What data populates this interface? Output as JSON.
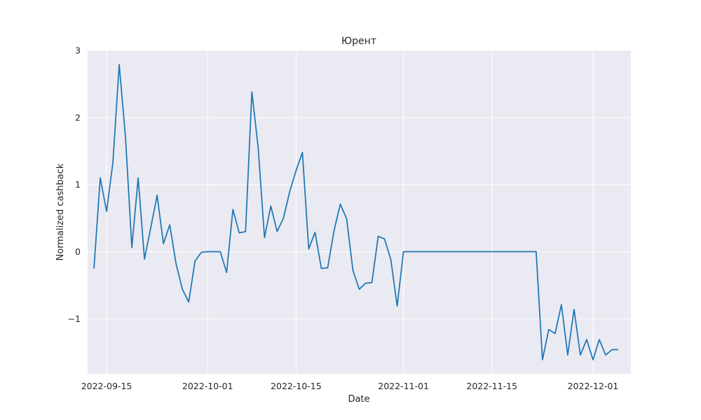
{
  "chart_data": {
    "type": "line",
    "title": "Юрент",
    "xlabel": "Date",
    "ylabel": "Normalized cashback",
    "xlim": [
      "2022-09-12",
      "2022-12-07"
    ],
    "ylim": [
      -1.82,
      3.0
    ],
    "x_ticks": [
      "2022-09-15",
      "2022-10-01",
      "2022-10-15",
      "2022-11-01",
      "2022-11-15",
      "2022-12-01"
    ],
    "y_ticks": [
      3,
      2,
      1,
      0,
      -1
    ],
    "y_tick_labels": [
      "3",
      "2",
      "1",
      "0",
      "−1"
    ],
    "grid": true,
    "colors": {
      "background": "#EAEAF2",
      "grid": "#FFFFFF",
      "line": "#1F77B4"
    },
    "series": [
      {
        "x": [
          "2022-09-13",
          "2022-09-14",
          "2022-09-15",
          "2022-09-16",
          "2022-09-17",
          "2022-09-18",
          "2022-09-19",
          "2022-09-20",
          "2022-09-21",
          "2022-09-22",
          "2022-09-23",
          "2022-09-24",
          "2022-09-25",
          "2022-09-26",
          "2022-09-27",
          "2022-09-28",
          "2022-09-29",
          "2022-09-30",
          "2022-10-01",
          "2022-10-02",
          "2022-10-03",
          "2022-10-04",
          "2022-10-05",
          "2022-10-06",
          "2022-10-07",
          "2022-10-08",
          "2022-10-09",
          "2022-10-10",
          "2022-10-11",
          "2022-10-12",
          "2022-10-13",
          "2022-10-14",
          "2022-10-15",
          "2022-10-16",
          "2022-10-17",
          "2022-10-18",
          "2022-10-19",
          "2022-10-20",
          "2022-10-21",
          "2022-10-22",
          "2022-10-23",
          "2022-10-24",
          "2022-10-25",
          "2022-10-26",
          "2022-10-27",
          "2022-10-28",
          "2022-10-29",
          "2022-10-30",
          "2022-10-31",
          "2022-11-01",
          "2022-11-22",
          "2022-11-23",
          "2022-11-24",
          "2022-11-25",
          "2022-11-26",
          "2022-11-27",
          "2022-11-28",
          "2022-11-29",
          "2022-11-30",
          "2022-12-01",
          "2022-12-02",
          "2022-12-03",
          "2022-12-04",
          "2022-12-05"
        ],
        "values": [
          -0.25,
          1.1,
          0.6,
          1.33,
          2.79,
          1.7,
          0.06,
          1.1,
          -0.11,
          0.36,
          0.84,
          0.12,
          0.4,
          -0.18,
          -0.56,
          -0.75,
          -0.14,
          -0.01,
          0.0,
          0.0,
          0.0,
          -0.31,
          0.63,
          0.28,
          0.3,
          2.38,
          1.55,
          0.21,
          0.68,
          0.3,
          0.5,
          0.9,
          1.21,
          1.48,
          0.04,
          0.29,
          -0.25,
          -0.24,
          0.31,
          0.71,
          0.49,
          -0.28,
          -0.56,
          -0.47,
          -0.46,
          0.23,
          0.19,
          -0.12,
          -0.81,
          0.0,
          0.0,
          -1.61,
          -1.16,
          -1.22,
          -0.79,
          -1.54,
          -0.86,
          -1.54,
          -1.31,
          -1.61,
          -1.31,
          -1.54,
          -1.46,
          -1.46
        ]
      }
    ]
  }
}
